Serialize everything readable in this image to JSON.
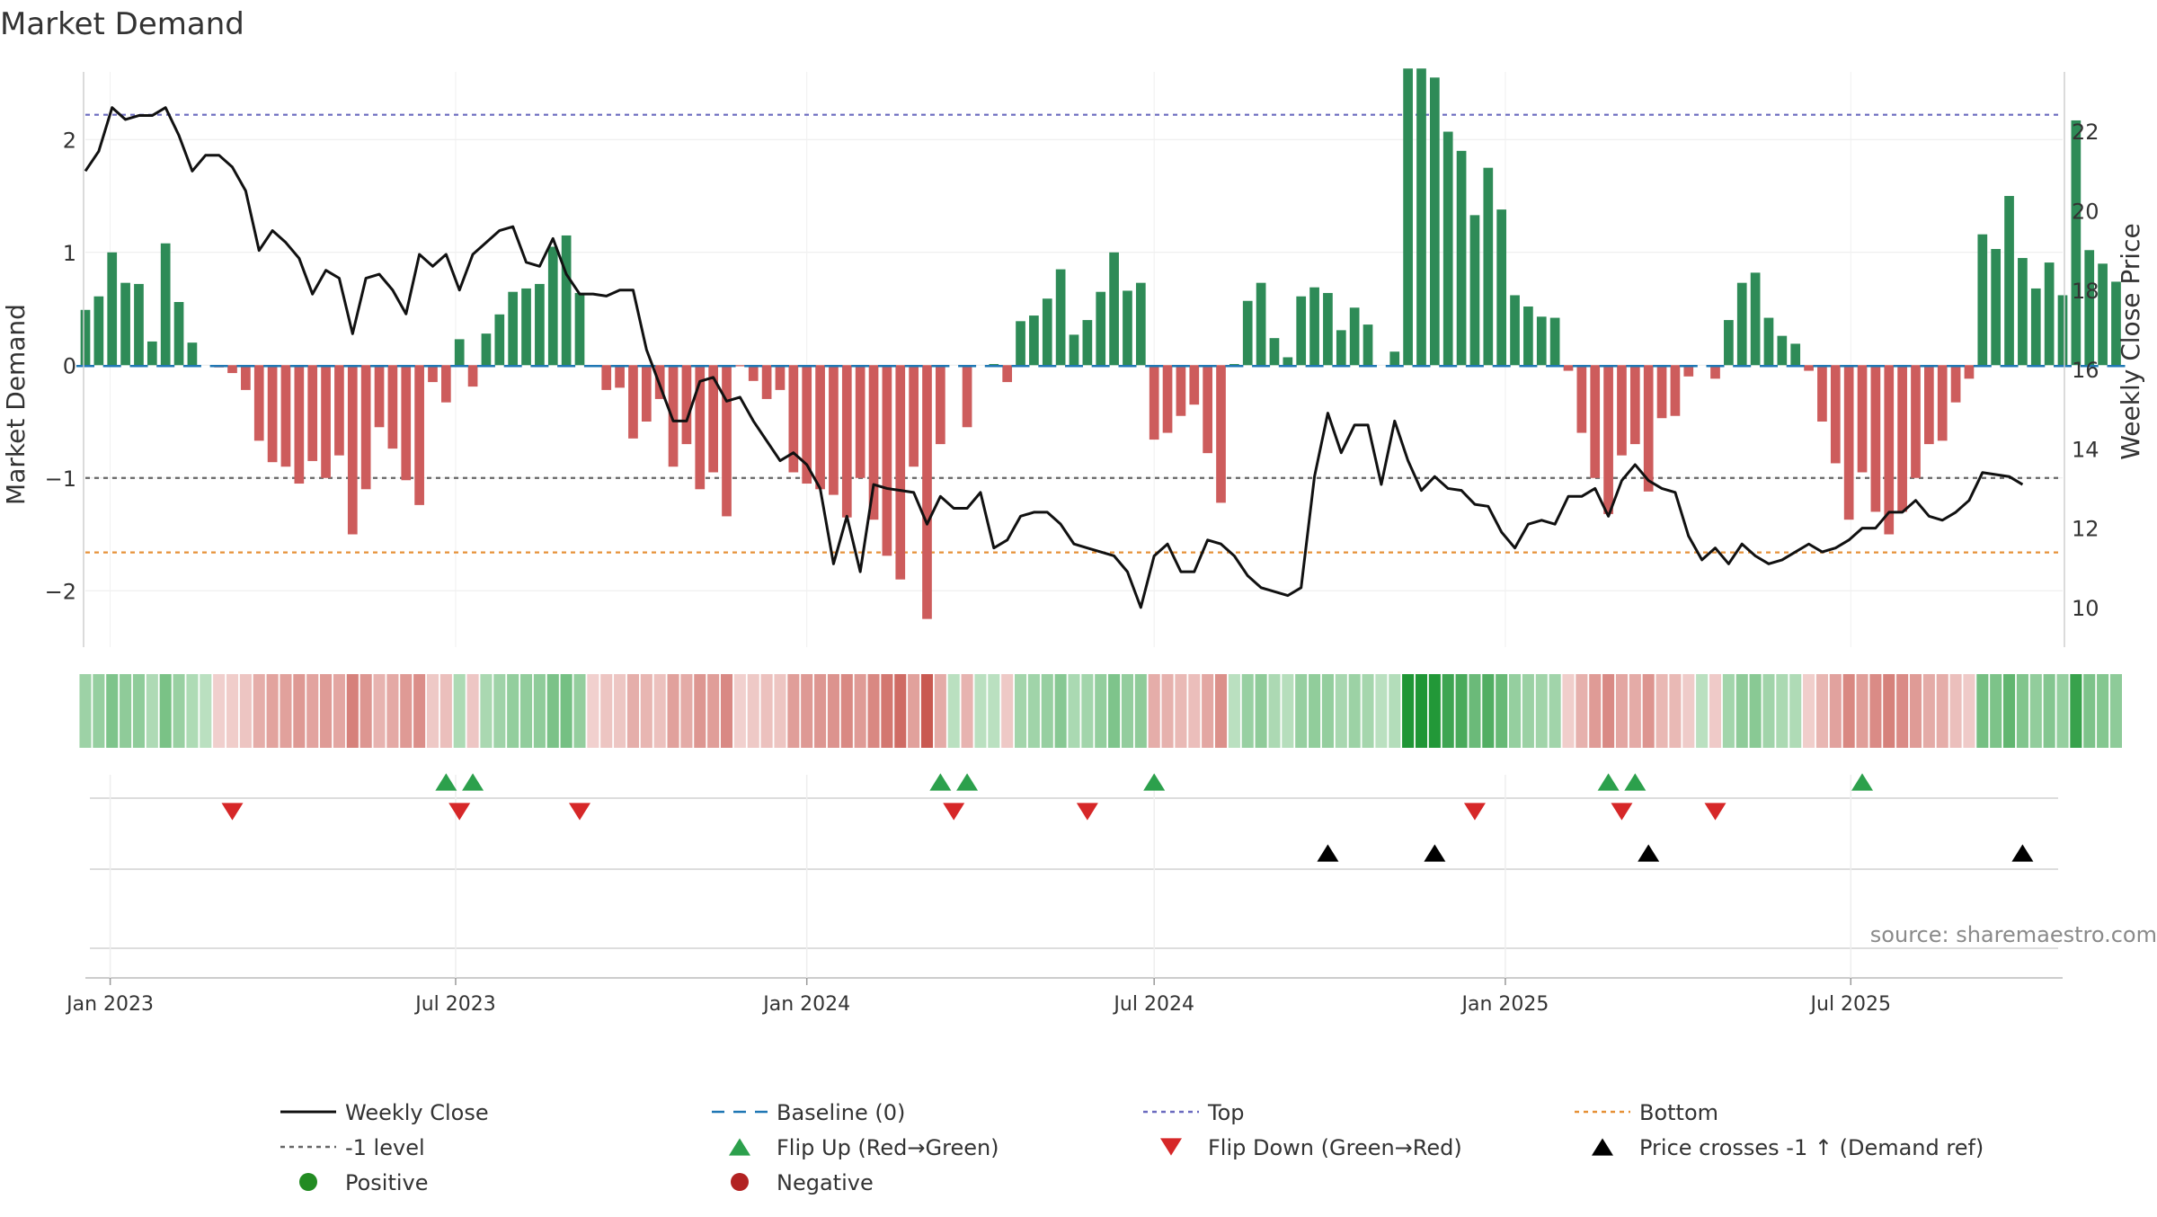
{
  "chart_data": {
    "type": "bar",
    "title": "Market Demand",
    "ylabel": "Market Demand",
    "y2label": "Weekly Close Price",
    "ylim": [
      -2.5,
      2.6
    ],
    "y2lim": [
      9.0,
      23.5
    ],
    "y_ticks": [
      {
        "v": 2,
        "label": "2"
      },
      {
        "v": 1,
        "label": "1"
      },
      {
        "v": 0,
        "label": "0"
      },
      {
        "v": -1,
        "label": "−1"
      },
      {
        "v": -2,
        "label": "−2"
      }
    ],
    "y2_ticks": [
      {
        "v": 22,
        "label": "22"
      },
      {
        "v": 20,
        "label": "20"
      },
      {
        "v": 18,
        "label": "18"
      },
      {
        "v": 16,
        "label": "16"
      },
      {
        "v": 14,
        "label": "14"
      },
      {
        "v": 12,
        "label": "12"
      },
      {
        "v": 10,
        "label": "10"
      }
    ],
    "x_start": "2022-12-19",
    "x_end": "2025-10-20",
    "x_ticks": [
      {
        "date": "2023-01-01",
        "label": "Jan 2023"
      },
      {
        "date": "2023-07-01",
        "label": "Jul 2023"
      },
      {
        "date": "2024-01-01",
        "label": "Jan 2024"
      },
      {
        "date": "2024-07-01",
        "label": "Jul 2024"
      },
      {
        "date": "2025-01-01",
        "label": "Jan 2025"
      },
      {
        "date": "2025-07-01",
        "label": "Jul 2025"
      }
    ],
    "first_week": "2022-12-19",
    "demand": [
      0.49,
      0.61,
      1.0,
      0.73,
      0.72,
      0.21,
      1.08,
      0.56,
      0.2,
      0,
      -0.02,
      -0.07,
      -0.22,
      -0.67,
      -0.86,
      -0.9,
      -1.05,
      -0.85,
      -1.0,
      -0.8,
      -1.5,
      -1.1,
      -0.55,
      -0.74,
      -1.02,
      -1.24,
      -0.15,
      -0.33,
      0.23,
      -0.19,
      0.28,
      0.45,
      0.65,
      0.68,
      0.72,
      1.05,
      1.15,
      0.64,
      -0.01,
      -0.22,
      -0.2,
      -0.65,
      -0.5,
      -0.3,
      -0.9,
      -0.7,
      -1.1,
      -0.95,
      -1.34,
      -0.01,
      -0.14,
      -0.3,
      -0.22,
      -0.95,
      -1.05,
      -1.1,
      -1.15,
      -1.35,
      -1.0,
      -1.37,
      -1.69,
      -1.9,
      -0.9,
      -2.25,
      -0.7,
      0,
      -0.55,
      0,
      0.01,
      -0.15,
      0.39,
      0.44,
      0.59,
      0.85,
      0.27,
      0.4,
      0.65,
      1.0,
      0.66,
      0.73,
      -0.66,
      -0.6,
      -0.45,
      -0.35,
      -0.78,
      -1.22,
      0.01,
      0.57,
      0.73,
      0.24,
      0.07,
      0.61,
      0.69,
      0.64,
      0.31,
      0.51,
      0.36,
      0,
      0.12,
      2.63,
      2.63,
      2.55,
      2.07,
      1.9,
      1.33,
      1.75,
      1.38,
      0.62,
      0.52,
      0.43,
      0.42,
      -0.05,
      -0.6,
      -1.0,
      -1.32,
      -0.8,
      -0.7,
      -1.12,
      -0.47,
      -0.45,
      -0.1,
      0,
      -0.12,
      0.4,
      0.73,
      0.82,
      0.42,
      0.26,
      0.19,
      -0.05,
      -0.5,
      -0.87,
      -1.37,
      -0.95,
      -1.3,
      -1.5,
      -1.3,
      -1.0,
      -0.7,
      -0.67,
      -0.33,
      -0.12,
      1.16,
      1.03,
      1.5,
      0.95,
      0.68,
      0.91,
      0.62,
      2.17,
      1.02,
      0.9,
      0.74
    ],
    "price": [
      21.0,
      21.5,
      22.6,
      22.3,
      22.4,
      22.4,
      22.6,
      21.9,
      21.0,
      21.4,
      21.4,
      21.1,
      20.5,
      19.0,
      19.5,
      19.2,
      18.8,
      17.9,
      18.5,
      18.3,
      16.9,
      18.3,
      18.4,
      18.0,
      17.4,
      18.9,
      18.6,
      18.9,
      18.0,
      18.9,
      19.2,
      19.5,
      19.6,
      18.7,
      18.6,
      19.3,
      18.4,
      17.9,
      17.9,
      17.85,
      18.0,
      18.0,
      16.5,
      15.6,
      14.7,
      14.7,
      15.7,
      15.8,
      15.2,
      15.3,
      14.7,
      14.2,
      13.7,
      13.9,
      13.6,
      13.0,
      11.1,
      12.3,
      10.9,
      13.1,
      13.0,
      12.95,
      12.9,
      12.1,
      12.8,
      12.5,
      12.5,
      12.9,
      11.5,
      11.7,
      12.3,
      12.4,
      12.4,
      12.1,
      11.6,
      11.5,
      11.4,
      11.3,
      10.9,
      10.0,
      11.3,
      11.6,
      10.9,
      10.9,
      11.7,
      11.6,
      11.3,
      10.8,
      10.5,
      10.4,
      10.3,
      10.5,
      13.3,
      14.9,
      13.9,
      14.6,
      14.6,
      13.1,
      14.7,
      13.7,
      12.95,
      13.3,
      13.0,
      12.95,
      12.6,
      12.55,
      11.9,
      11.5,
      12.1,
      12.2,
      12.1,
      12.8,
      12.8,
      13.0,
      12.3,
      13.2,
      13.6,
      13.2,
      13.0,
      12.9,
      11.8,
      11.2,
      11.5,
      11.1,
      11.6,
      11.3,
      11.1,
      11.2,
      11.4,
      11.6,
      11.4,
      11.5,
      11.7,
      12.0,
      12.0,
      12.4,
      12.4,
      12.7,
      12.3,
      12.2,
      12.4,
      12.7,
      13.4,
      13.35,
      13.3,
      13.1
    ],
    "reference_lines": [
      {
        "name": "Top",
        "value": 2.22,
        "color": "#6b6bbf"
      },
      {
        "name": "-1 level",
        "value": -1.0,
        "color": "#666666"
      },
      {
        "name": "Bottom",
        "value": -1.66,
        "color": "#e69138"
      },
      {
        "name": "Baseline (0)",
        "value": 0,
        "color": "#1f77b4"
      }
    ],
    "flip_up": [
      "2023-06-26",
      "2023-07-10",
      "2024-03-11",
      "2024-03-25",
      "2024-07-01",
      "2025-02-24",
      "2025-03-10",
      "2025-07-07"
    ],
    "flip_down": [
      "2023-03-06",
      "2023-07-03",
      "2023-09-04",
      "2024-03-18",
      "2024-05-27",
      "2024-12-16",
      "2025-03-03",
      "2025-04-21"
    ],
    "price_cross": [
      "2024-09-30",
      "2024-11-25",
      "2025-03-17",
      "2025-09-29"
    ],
    "colors": {
      "positive": "#2e8b57",
      "negative": "#cd5c5c",
      "price": "#111111",
      "flip_up": "#2ca04c",
      "flip_down": "#d62728",
      "cross": "#000000",
      "positive_marker": "#228b22",
      "negative_marker": "#b22222"
    },
    "legend": [
      {
        "key": "weekly",
        "label": "Weekly Close"
      },
      {
        "key": "baseline",
        "label": "Baseline (0)"
      },
      {
        "key": "top",
        "label": "Top"
      },
      {
        "key": "bottom",
        "label": "Bottom"
      },
      {
        "key": "minus1",
        "label": "-1 level"
      },
      {
        "key": "flipup",
        "label": "Flip Up (Red→Green)"
      },
      {
        "key": "flipdown",
        "label": "Flip Down (Green→Red)"
      },
      {
        "key": "cross",
        "label": "Price crosses -1 ↑ (Demand ref)"
      },
      {
        "key": "positive",
        "label": "Positive"
      },
      {
        "key": "negative",
        "label": "Negative"
      }
    ],
    "source": "source: sharemaestro.com"
  }
}
